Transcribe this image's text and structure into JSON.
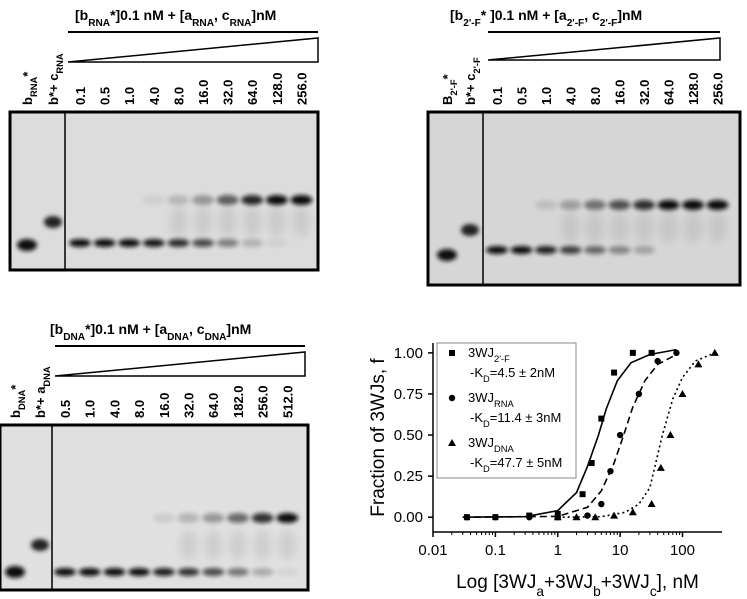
{
  "gels": [
    {
      "title": [
        "[b",
        "RNA",
        "*]0.1 nM + [a",
        "RNA",
        ", c",
        "RNA",
        "]nM"
      ],
      "lanes": [
        [
          "b",
          "RNA",
          "*"
        ],
        [
          "b*+ c",
          "RNA"
        ],
        [
          "0.1"
        ],
        [
          "0.5"
        ],
        [
          "1.0"
        ],
        [
          "4.0"
        ],
        [
          "8.0"
        ],
        [
          "16.0"
        ],
        [
          "32.0"
        ],
        [
          "64.0"
        ],
        [
          "128.0"
        ],
        [
          "256.0"
        ]
      ]
    },
    {
      "title": [
        "[b",
        "2'-F",
        "* ]0.1 nM + [a",
        "2'-F",
        ",  c",
        "2'-F",
        "]nM"
      ],
      "lanes": [
        [
          "B",
          "2'-F",
          "*"
        ],
        [
          "b*+ c",
          "2'-F"
        ],
        [
          "0.1"
        ],
        [
          "0.5"
        ],
        [
          "1.0"
        ],
        [
          "4.0"
        ],
        [
          "8.0"
        ],
        [
          "16.0"
        ],
        [
          "32.0"
        ],
        [
          "64.0"
        ],
        [
          "128.0"
        ],
        [
          "256.0"
        ]
      ]
    },
    {
      "title": [
        "[b",
        "DNA",
        "*]0.1 nM + [a",
        "DNA",
        ", c",
        "DNA",
        "]nM"
      ],
      "lanes": [
        [
          "b",
          "DNA",
          "*"
        ],
        [
          "b*+ a",
          "DNA"
        ],
        [
          "0.5"
        ],
        [
          "1.0"
        ],
        [
          "4.0"
        ],
        [
          "8.0"
        ],
        [
          "16.0"
        ],
        [
          "32.0"
        ],
        [
          "64.0"
        ],
        [
          "182.0"
        ],
        [
          "256.0"
        ],
        [
          "512.0"
        ]
      ]
    }
  ],
  "chart_data": {
    "type": "scatter",
    "y_label": "Fraction of 3WJs, f",
    "x_label": [
      "Log [3WJ",
      "a",
      "+3WJ",
      "b",
      "+3WJ",
      "c",
      "], nM"
    ],
    "xscale": "log",
    "xlim": [
      0.01,
      430
    ],
    "ylim": [
      -0.09,
      1.06
    ],
    "xticks": [
      0.01,
      0.1,
      1,
      10,
      100
    ],
    "yticks": [
      {
        "value": 0,
        "label": "0.00"
      },
      {
        "value": 0.25,
        "label": "0.25"
      },
      {
        "value": 0.5,
        "label": "0.50"
      },
      {
        "value": 0.75,
        "label": "0.75"
      },
      {
        "value": 1,
        "label": "1.00"
      }
    ],
    "series": [
      {
        "name": [
          "3WJ",
          "2'-F"
        ],
        "kd": [
          "-K",
          "D",
          "=4.5 ± 2nM"
        ],
        "marker": "square",
        "line": "solid",
        "color": "#000000",
        "x": [
          0.035,
          0.1,
          0.35,
          1,
          2.5,
          3.5,
          5,
          8,
          16,
          32
        ],
        "values": [
          0,
          0,
          0.01,
          0.02,
          0.14,
          0.33,
          0.6,
          0.88,
          1.0,
          1.0
        ],
        "fit_x": [
          0.03,
          0.3,
          1,
          2,
          3,
          4.5,
          6,
          9,
          15,
          30,
          80
        ],
        "fit_values": [
          0,
          0.003,
          0.04,
          0.15,
          0.31,
          0.5,
          0.66,
          0.83,
          0.94,
          0.99,
          1.02
        ]
      },
      {
        "name": [
          "3WJ",
          "RNA"
        ],
        "kd": [
          "-K",
          "D",
          "=11.4 ± 3nM"
        ],
        "marker": "circle",
        "line": "dashed",
        "color": "#000000",
        "x": [
          0.035,
          0.1,
          0.35,
          1,
          3,
          5,
          7,
          10,
          20,
          40,
          80
        ],
        "values": [
          0,
          0,
          0,
          0,
          0.01,
          0.08,
          0.28,
          0.5,
          0.75,
          0.95,
          1.0
        ],
        "fit_x": [
          0.03,
          1,
          3,
          5,
          8,
          11.4,
          16,
          25,
          40,
          80
        ],
        "fit_values": [
          0,
          0.005,
          0.06,
          0.16,
          0.33,
          0.5,
          0.67,
          0.83,
          0.93,
          0.99
        ]
      },
      {
        "name": [
          "3WJ",
          "DNA"
        ],
        "kd": [
          "-K",
          "D",
          "=47.7 ± 5nM"
        ],
        "marker": "triangle",
        "line": "dotted",
        "color": "#000000",
        "x": [
          1,
          2,
          4,
          8,
          16,
          32,
          45,
          64,
          100,
          180,
          330
        ],
        "values": [
          0,
          0,
          0,
          0.01,
          0.03,
          0.08,
          0.3,
          0.5,
          0.75,
          0.93,
          1.0
        ],
        "fit_x": [
          1,
          5,
          12,
          20,
          30,
          47.7,
          70,
          100,
          160,
          330
        ],
        "fit_values": [
          0,
          0.003,
          0.03,
          0.08,
          0.18,
          0.5,
          0.72,
          0.85,
          0.95,
          1.0
        ]
      }
    ]
  }
}
